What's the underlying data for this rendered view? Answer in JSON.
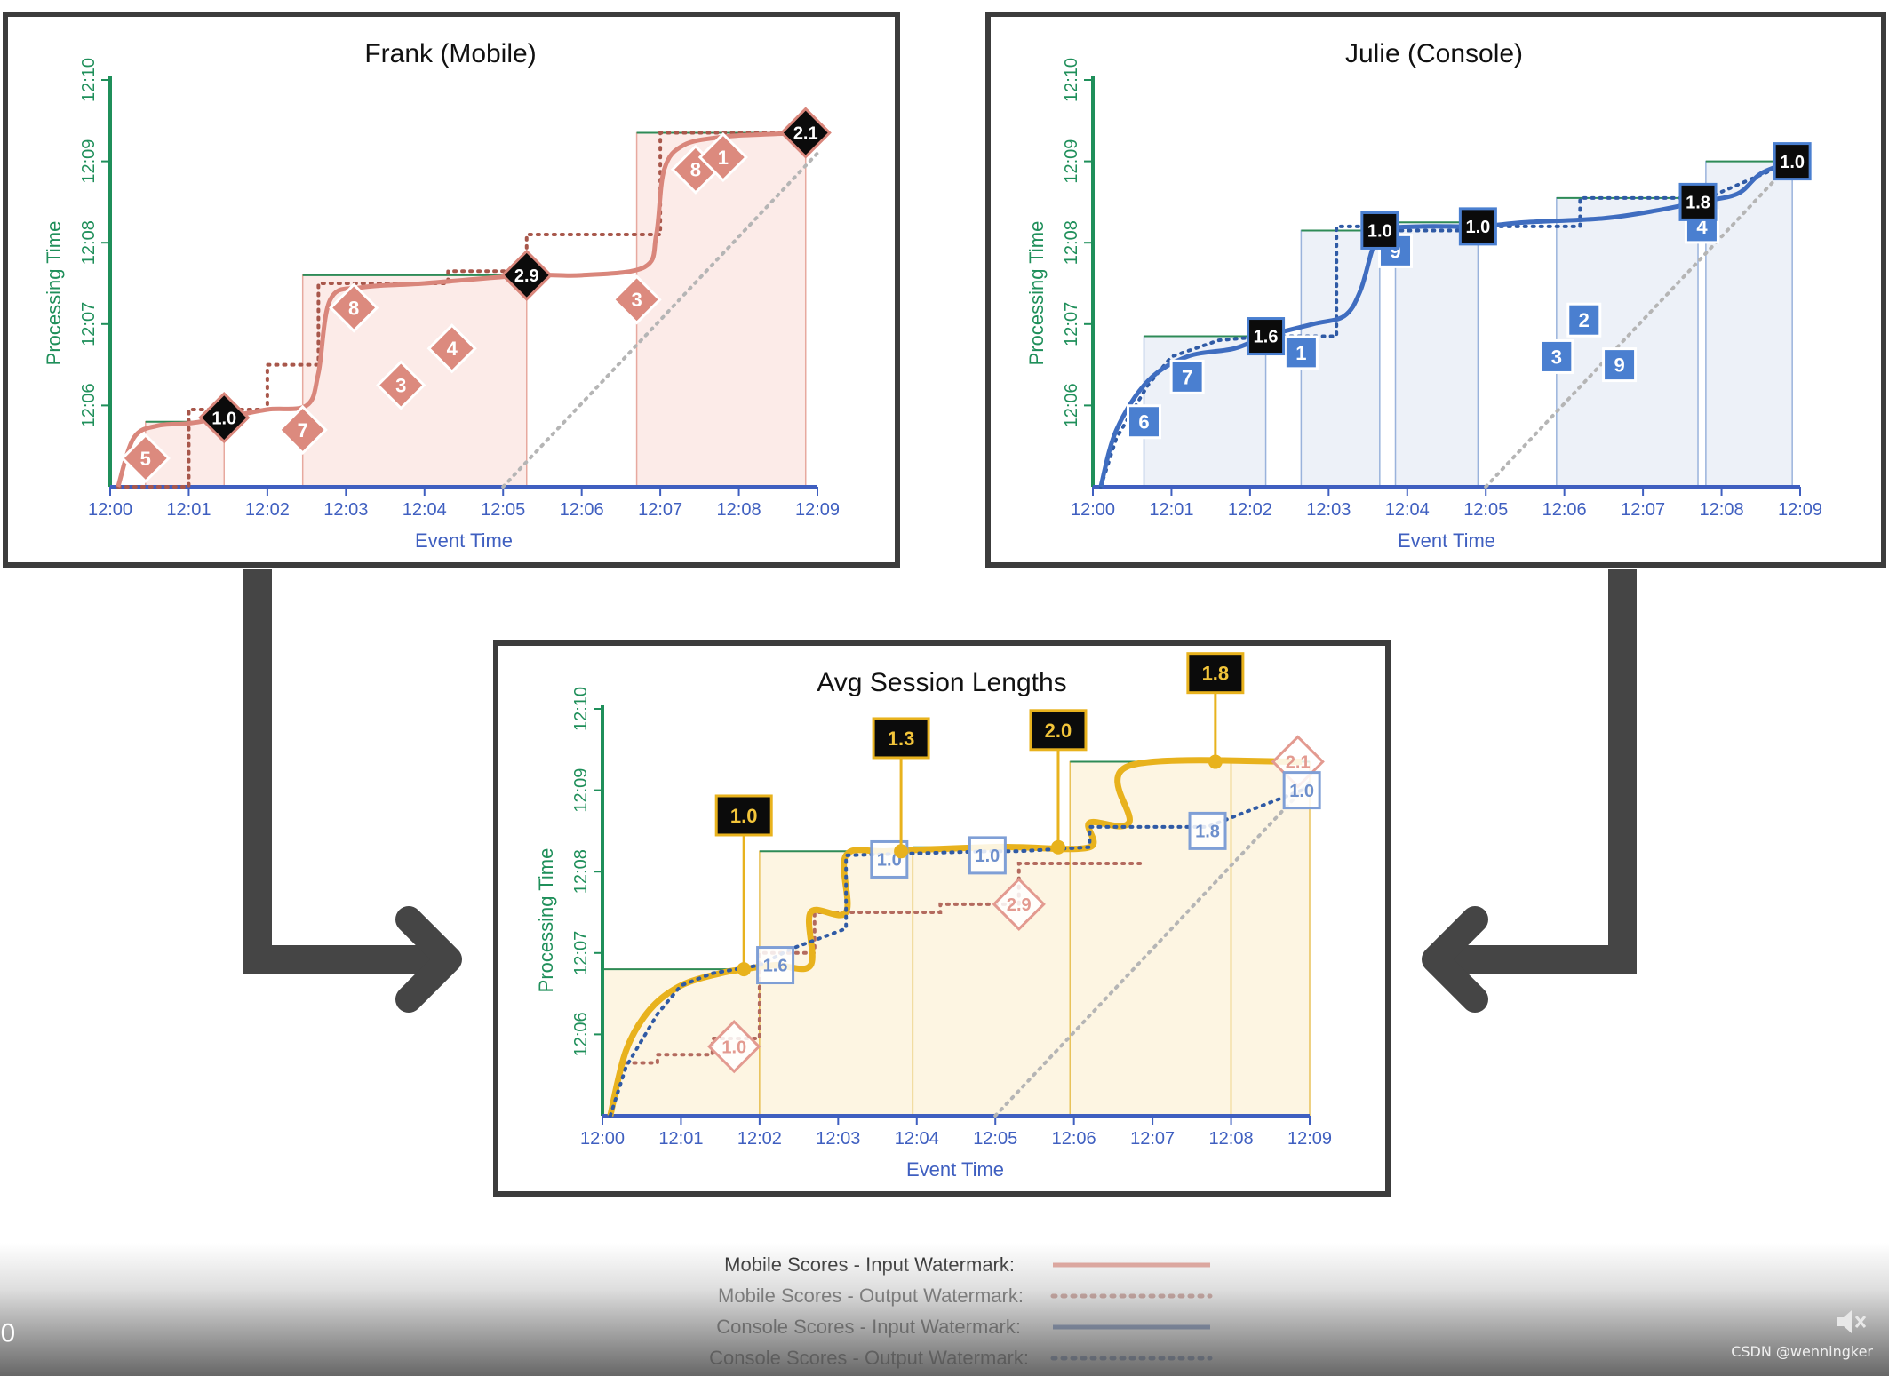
{
  "chart_data": [
    {
      "id": "frank",
      "type": "line",
      "title": "Frank (Mobile)",
      "xlabel": "Event Time",
      "ylabel": "Processing Time",
      "x_ticks": [
        "12:00",
        "12:01",
        "12:02",
        "12:03",
        "12:04",
        "12:05",
        "12:06",
        "12:07",
        "12:08",
        "12:09"
      ],
      "y_ticks": [
        "12:06",
        "12:07",
        "12:08",
        "12:09",
        "12:10"
      ],
      "xlim": [
        0,
        9
      ],
      "ylim": [
        5,
        10
      ],
      "color": "#d9867b",
      "windows": [
        {
          "x0": 0.45,
          "x1": 1.45,
          "y": 5.8
        },
        {
          "x0": 2.45,
          "x1": 5.3,
          "y": 7.6
        },
        {
          "x0": 6.7,
          "x1": 8.85,
          "y": 9.35
        }
      ],
      "events": [
        {
          "x": 0.45,
          "y": 5.35,
          "label": "5"
        },
        {
          "x": 2.45,
          "y": 5.7,
          "label": "7"
        },
        {
          "x": 3.1,
          "y": 7.2,
          "label": "8"
        },
        {
          "x": 3.7,
          "y": 6.25,
          "label": "3"
        },
        {
          "x": 4.35,
          "y": 6.7,
          "label": "4"
        },
        {
          "x": 6.7,
          "y": 7.3,
          "label": "3"
        },
        {
          "x": 7.45,
          "y": 8.9,
          "label": "8"
        },
        {
          "x": 7.8,
          "y": 9.05,
          "label": "1"
        }
      ],
      "results": [
        {
          "x": 1.45,
          "y": 5.85,
          "label": "1.0"
        },
        {
          "x": 5.3,
          "y": 7.6,
          "label": "2.9"
        },
        {
          "x": 8.85,
          "y": 9.35,
          "label": "2.1"
        }
      ],
      "input_watermark": {
        "x": [
          0.1,
          0.3,
          0.6,
          1.0,
          1.45,
          2.0,
          2.5,
          2.65,
          2.8,
          3.2,
          4.0,
          5.3,
          6.0,
          6.8,
          6.95,
          7.05,
          7.3,
          7.8,
          8.3,
          8.85
        ],
        "y": [
          5.0,
          5.6,
          5.75,
          5.78,
          5.85,
          5.95,
          6.0,
          6.4,
          7.3,
          7.45,
          7.5,
          7.6,
          7.6,
          7.7,
          8.1,
          8.9,
          9.2,
          9.3,
          9.33,
          9.35
        ]
      },
      "output_watermark": {
        "x": [
          0.1,
          1.0,
          1.0,
          2.0,
          2.0,
          2.65,
          2.65,
          4.3,
          4.3,
          5.3,
          5.3,
          6.7,
          6.7,
          7.0,
          7.0,
          8.85
        ],
        "y": [
          5.0,
          5.0,
          5.95,
          5.95,
          6.5,
          6.5,
          7.5,
          7.5,
          7.65,
          7.65,
          8.1,
          8.1,
          8.1,
          8.1,
          9.35,
          9.35
        ]
      }
    },
    {
      "id": "julie",
      "type": "line",
      "title": "Julie (Console)",
      "xlabel": "Event Time",
      "ylabel": "Processing Time",
      "x_ticks": [
        "12:00",
        "12:01",
        "12:02",
        "12:03",
        "12:04",
        "12:05",
        "12:06",
        "12:07",
        "12:08",
        "12:09"
      ],
      "y_ticks": [
        "12:06",
        "12:07",
        "12:08",
        "12:09",
        "12:10"
      ],
      "xlim": [
        0,
        9
      ],
      "ylim": [
        5,
        10
      ],
      "color": "#3f6dc0",
      "windows": [
        {
          "x0": 0.65,
          "x1": 2.2,
          "y": 6.85
        },
        {
          "x0": 2.65,
          "x1": 3.65,
          "y": 8.15
        },
        {
          "x0": 3.85,
          "x1": 4.9,
          "y": 8.25
        },
        {
          "x0": 5.9,
          "x1": 7.7,
          "y": 8.55
        },
        {
          "x0": 7.8,
          "x1": 8.9,
          "y": 9.0
        }
      ],
      "events": [
        {
          "x": 0.65,
          "y": 5.8,
          "label": "6"
        },
        {
          "x": 1.2,
          "y": 6.35,
          "label": "7"
        },
        {
          "x": 2.65,
          "y": 6.65,
          "label": "1"
        },
        {
          "x": 3.85,
          "y": 7.9,
          "label": "9"
        },
        {
          "x": 5.9,
          "y": 6.6,
          "label": "3"
        },
        {
          "x": 6.25,
          "y": 7.05,
          "label": "2"
        },
        {
          "x": 6.7,
          "y": 6.5,
          "label": "9"
        },
        {
          "x": 7.75,
          "y": 8.2,
          "label": "4"
        }
      ],
      "results": [
        {
          "x": 2.2,
          "y": 6.85,
          "label": "1.6"
        },
        {
          "x": 3.65,
          "y": 8.15,
          "label": "1.0"
        },
        {
          "x": 4.9,
          "y": 8.2,
          "label": "1.0"
        },
        {
          "x": 7.7,
          "y": 8.5,
          "label": "1.8"
        },
        {
          "x": 8.9,
          "y": 9.0,
          "label": "1.0"
        }
      ],
      "input_watermark": {
        "x": [
          0.1,
          0.3,
          0.7,
          1.2,
          1.8,
          2.2,
          2.8,
          3.2,
          3.4,
          3.55,
          3.65,
          4.2,
          4.9,
          5.5,
          6.5,
          7.2,
          7.7,
          8.2,
          8.5,
          8.9
        ],
        "y": [
          5.0,
          5.7,
          6.3,
          6.6,
          6.7,
          6.85,
          7.0,
          7.1,
          7.4,
          7.9,
          8.15,
          8.2,
          8.2,
          8.25,
          8.3,
          8.4,
          8.5,
          8.6,
          8.85,
          9.0
        ]
      },
      "output_watermark": {
        "x": [
          0.1,
          0.3,
          0.7,
          1.0,
          1.3,
          1.6,
          2.2,
          2.2,
          3.1,
          3.1,
          3.65,
          3.65,
          4.9,
          4.9,
          6.2,
          6.2,
          7.7,
          7.7,
          8.9
        ],
        "y": [
          5.0,
          5.6,
          6.25,
          6.6,
          6.7,
          6.8,
          6.85,
          6.85,
          6.85,
          8.2,
          8.2,
          8.15,
          8.15,
          8.2,
          8.2,
          8.55,
          8.55,
          8.5,
          9.0
        ]
      }
    },
    {
      "id": "avg",
      "type": "line",
      "title": "Avg Session Lengths",
      "xlabel": "Event Time",
      "ylabel": "Processing Time",
      "x_ticks": [
        "12:00",
        "12:01",
        "12:02",
        "12:03",
        "12:04",
        "12:05",
        "12:06",
        "12:07",
        "12:08",
        "12:09"
      ],
      "y_ticks": [
        "12:06",
        "12:07",
        "12:08",
        "12:09",
        "12:10"
      ],
      "xlim": [
        0,
        9
      ],
      "ylim": [
        5,
        10
      ],
      "color": "#e8b21d",
      "windows": [
        {
          "x0": 0.0,
          "x1": 2.0,
          "y": 6.8
        },
        {
          "x0": 2.0,
          "x1": 3.95,
          "y": 8.25
        },
        {
          "x0": 3.95,
          "x1": 5.95,
          "y": 8.3
        },
        {
          "x0": 5.95,
          "x1": 8.0,
          "y": 9.35
        },
        {
          "x0": 8.0,
          "x1": 9.0,
          "y": 9.35
        }
      ],
      "results": [
        {
          "x": 1.8,
          "y": 6.8,
          "label": "1.0",
          "callout_y": 8.45
        },
        {
          "x": 3.8,
          "y": 8.25,
          "label": "1.3",
          "callout_y": 9.4
        },
        {
          "x": 5.8,
          "y": 8.3,
          "label": "2.0",
          "callout_y": 9.5
        },
        {
          "x": 7.8,
          "y": 9.35,
          "label": "1.8",
          "callout_y": 10.2
        }
      ],
      "mobile_results": [
        {
          "x": 1.45,
          "y": 5.85,
          "label": "1.0"
        },
        {
          "x": 5.3,
          "y": 7.6,
          "label": "2.9"
        },
        {
          "x": 8.85,
          "y": 9.35,
          "label": "2.1"
        }
      ],
      "console_results": [
        {
          "x": 2.2,
          "y": 6.85,
          "label": "1.6"
        },
        {
          "x": 3.65,
          "y": 8.15,
          "label": "1.0"
        },
        {
          "x": 4.9,
          "y": 8.2,
          "label": "1.0"
        },
        {
          "x": 7.7,
          "y": 8.5,
          "label": "1.8"
        },
        {
          "x": 8.9,
          "y": 9.0,
          "label": "1.0"
        }
      ],
      "input_watermark": {
        "x": [
          0.1,
          0.3,
          0.6,
          1.0,
          1.5,
          1.8,
          2.2,
          2.65,
          2.65,
          3.1,
          3.1,
          3.65,
          4.9,
          5.3,
          6.2,
          6.2,
          6.7,
          6.7,
          8.9
        ],
        "y": [
          5.0,
          5.8,
          6.3,
          6.6,
          6.75,
          6.8,
          6.85,
          6.85,
          7.5,
          7.5,
          8.2,
          8.25,
          8.3,
          8.3,
          8.3,
          8.6,
          8.6,
          9.3,
          9.35
        ]
      },
      "output_watermark_mobile": {
        "x": [
          0.3,
          0.7,
          0.7,
          1.4,
          1.4,
          2.0,
          2.0,
          2.7,
          2.7,
          4.3,
          4.3,
          5.3,
          5.3,
          6.9
        ],
        "y": [
          5.65,
          5.65,
          5.75,
          5.75,
          5.95,
          5.95,
          7.0,
          7.0,
          7.5,
          7.5,
          7.6,
          7.6,
          8.1,
          8.1
        ]
      },
      "output_watermark_console": {
        "x": [
          0.1,
          0.3,
          0.7,
          1.0,
          1.4,
          2.0,
          2.4,
          3.1,
          3.1,
          4.9,
          5.3,
          6.2,
          6.2,
          7.7,
          8.9
        ],
        "y": [
          5.0,
          5.6,
          6.25,
          6.6,
          6.75,
          6.85,
          7.05,
          7.3,
          8.2,
          8.25,
          8.25,
          8.3,
          8.55,
          8.55,
          9.0
        ]
      }
    }
  ],
  "legend": [
    {
      "label": "Mobile Scores - Input Watermark:",
      "color": "#e39a90",
      "style": "solid"
    },
    {
      "label": "Mobile Scores - Output Watermark:",
      "color": "#b36a5e",
      "style": "dotted"
    },
    {
      "label": "Console Scores - Input Watermark:",
      "color": "#3a5fa8",
      "style": "solid"
    },
    {
      "label": "Console Scores - Output Watermark:",
      "color": "#3a5fa8",
      "style": "dotted"
    }
  ],
  "player": {
    "time_fragment": "0",
    "attribution": "CSDN @wenningker"
  },
  "colors": {
    "axis_y": "#1f8f5a",
    "axis_x": "#3f5fc0",
    "frame": "#3c3c3c",
    "arrow": "#454545"
  }
}
